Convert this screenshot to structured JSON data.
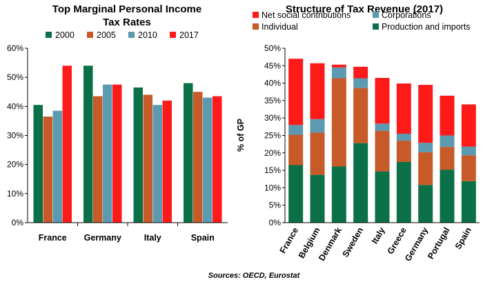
{
  "chart_data": [
    {
      "type": "bar",
      "title_lines": [
        "Top Marginal Personal Income",
        "Tax Rates"
      ],
      "categories": [
        "France",
        "Germany",
        "Italy",
        "Spain"
      ],
      "series": [
        {
          "name": "2000",
          "color": "#0b7048",
          "values": [
            40.5,
            54.0,
            46.5,
            48.0
          ]
        },
        {
          "name": "2005",
          "color": "#c65a28",
          "values": [
            36.5,
            43.5,
            44.0,
            45.0
          ]
        },
        {
          "name": "2010",
          "color": "#5b9ab0",
          "values": [
            38.5,
            47.5,
            40.5,
            43.0
          ]
        },
        {
          "name": "2017",
          "color": "#ff1a1a",
          "values": [
            54.0,
            47.5,
            42.0,
            43.5
          ]
        }
      ],
      "ylim": [
        0,
        60
      ],
      "yticks": [
        "0%",
        "10%",
        "20%",
        "30%",
        "40%",
        "50%",
        "60%"
      ],
      "grid": false,
      "legend_position": "top"
    },
    {
      "type": "stacked_bar",
      "title": "Structure of Tax Revenue (2017)",
      "ylabel": "% of GP",
      "categories": [
        "France",
        "Belgium",
        "Denmark",
        "Sweden",
        "Italy",
        "Greece",
        "Germany",
        "Portugal",
        "Spain"
      ],
      "series": [
        {
          "name": "Production and imports",
          "color": "#0b7048",
          "values": [
            16.5,
            13.7,
            16.1,
            22.8,
            14.7,
            17.4,
            10.8,
            15.2,
            11.9
          ]
        },
        {
          "name": "Individual",
          "color": "#c65a28",
          "values": [
            8.7,
            12.1,
            25.3,
            15.8,
            11.6,
            6.1,
            9.4,
            6.5,
            7.4
          ]
        },
        {
          "name": "Corporations",
          "color": "#5b9ab0",
          "values": [
            2.8,
            3.9,
            3.1,
            2.8,
            2.1,
            2.0,
            2.7,
            3.3,
            2.5
          ]
        },
        {
          "name": "Net social contributions",
          "color": "#ff1a1a",
          "values": [
            19.0,
            16.0,
            0.8,
            3.3,
            13.1,
            14.4,
            16.6,
            11.4,
            12.1
          ]
        }
      ],
      "legend_order": [
        "Net social contributions",
        "Corporations",
        "Individual",
        "Production and imports"
      ],
      "ylim": [
        0,
        50
      ],
      "yticks": [
        "0%",
        "5%",
        "10%",
        "15%",
        "20%",
        "25%",
        "30%",
        "35%",
        "40%",
        "45%",
        "50%"
      ],
      "grid": false,
      "legend_position": "top"
    }
  ],
  "source": "Sources: OECD, Eurostat"
}
